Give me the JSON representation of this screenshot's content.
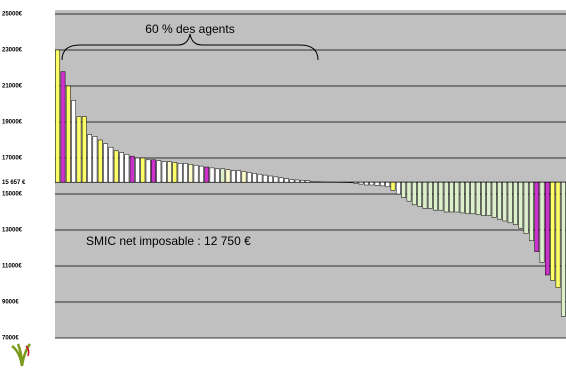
{
  "chart_data": {
    "type": "bar",
    "annotations": [
      "60 % des agents",
      "SMIC net imposable : 12 750 €"
    ],
    "ylim": [
      7000,
      25000
    ],
    "baseline": 15657,
    "yticks": [
      {
        "value": 7000,
        "label": "7000€"
      },
      {
        "value": 9000,
        "label": "9000€"
      },
      {
        "value": 11000,
        "label": "11000€"
      },
      {
        "value": 13000,
        "label": "13000€"
      },
      {
        "value": 15000,
        "label": "15000€"
      },
      {
        "value": 15657,
        "label": "15 657 €"
      },
      {
        "value": 17000,
        "label": "17000€"
      },
      {
        "value": 19000,
        "label": "19000€"
      },
      {
        "value": 21000,
        "label": "21000€"
      },
      {
        "value": 23000,
        "label": "23000€"
      },
      {
        "value": 25000,
        "label": "25000€"
      }
    ],
    "grid": true,
    "background": "#c0c0c0",
    "values": [
      23000,
      21800,
      21000,
      20200,
      19300,
      19300,
      18300,
      18200,
      18000,
      17800,
      17600,
      17400,
      17300,
      17200,
      17100,
      17000,
      17000,
      16900,
      16900,
      16850,
      16800,
      16800,
      16750,
      16700,
      16700,
      16650,
      16600,
      16550,
      16500,
      16450,
      16400,
      16400,
      16350,
      16300,
      16300,
      16250,
      16200,
      16150,
      16100,
      16050,
      16000,
      15950,
      15900,
      15850,
      15800,
      15780,
      15760,
      15740,
      15700,
      15680,
      15670,
      15660,
      15660,
      15650,
      15640,
      15630,
      15600,
      15550,
      15500,
      15500,
      15480,
      15450,
      15400,
      15200,
      15000,
      14800,
      14600,
      14400,
      14300,
      14200,
      14200,
      14100,
      14100,
      14000,
      14000,
      14000,
      13950,
      13900,
      13900,
      13850,
      13800,
      13800,
      13700,
      13600,
      13500,
      13400,
      13300,
      13100,
      12800,
      12400,
      11800,
      11200,
      10500,
      10200,
      9800,
      8200
    ],
    "colors": [
      "#ffff66",
      "#cc33cc",
      "#ffff66",
      "#ffffff",
      "#ffff66",
      "#ffff66",
      "#ffffff",
      "#ffffff",
      "#ffff66",
      "#ffffff",
      "#ffffff",
      "#ffff66",
      "#ffffff",
      "#ffffff",
      "#cc33cc",
      "#ffffff",
      "#ffff66",
      "#ffffff",
      "#cc33cc",
      "#ffffff",
      "#ffffff",
      "#ffffcc",
      "#ffff66",
      "#ffffff",
      "#ffffff",
      "#ffffcc",
      "#ffffff",
      "#ffffff",
      "#cc33cc",
      "#ffffff",
      "#ffffff",
      "#ddf0cc",
      "#ffffcc",
      "#ffffff",
      "#ffffff",
      "#ffffcc",
      "#ffffff",
      "#ffffff",
      "#ffffff",
      "#ffffff",
      "#ffffff",
      "#ffffff",
      "#ffffff",
      "#ffffff",
      "#ffffff",
      "#ffffff",
      "#ffffff",
      "#ffffff",
      "#ffffff",
      "#ffffff",
      "#ffffff",
      "#ffffff",
      "#ffffff",
      "#ffffff",
      "#ffffff",
      "#ffffff",
      "#ffffff",
      "#ffffff",
      "#ffffff",
      "#ffffff",
      "#ffffff",
      "#ffffff",
      "#ffffff",
      "#ffff66",
      "#ffffff",
      "#ddf0cc",
      "#ddf0cc",
      "#ddf0cc",
      "#ddf0cc",
      "#ddf0cc",
      "#ddf0cc",
      "#ddf0cc",
      "#ddf0cc",
      "#ddf0cc",
      "#ddf0cc",
      "#ddf0cc",
      "#ddf0cc",
      "#ddf0cc",
      "#ddf0cc",
      "#ddf0cc",
      "#ddf0cc",
      "#ddf0cc",
      "#ddf0cc",
      "#ddf0cc",
      "#ddf0cc",
      "#ddf0cc",
      "#ddf0cc",
      "#ddf0cc",
      "#ddf0cc",
      "#ddf0cc",
      "#cc33cc",
      "#ddf0cc",
      "#cc33cc",
      "#ffff66",
      "#ffff66",
      "#ddf0cc"
    ]
  }
}
